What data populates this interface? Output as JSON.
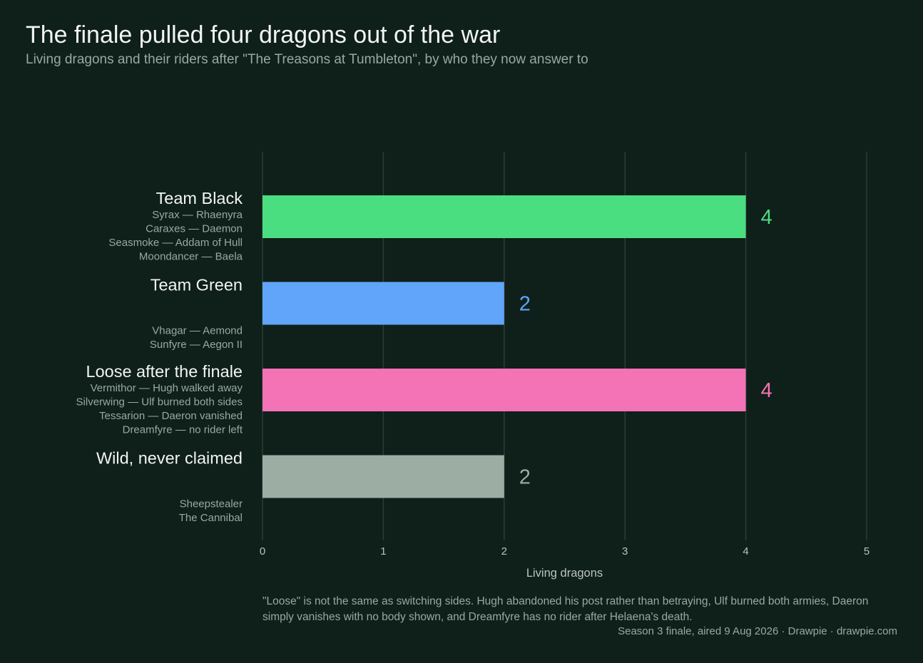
{
  "title": "The finale pulled four dragons out of the war",
  "subtitle": "Living dragons and their riders after \"The Treasons at Tumbleton\", by who they now answer to",
  "note": "\"Loose\" is not the same as switching sides. Hugh abandoned his post rather than betraying, Ulf burned both armies, Daeron simply vanishes with no body shown, and Dreamfyre has no rider after Helaena's death.",
  "source": "Season 3 finale, aired 9 Aug 2026  ·  Drawpie · drawpie.com",
  "chart_data": {
    "type": "bar",
    "orientation": "horizontal",
    "categories": [
      "Team Black",
      "Team Green",
      "Loose after the finale",
      "Wild, never claimed"
    ],
    "values": [
      4,
      2,
      4,
      2
    ],
    "details": [
      [
        "Syrax — Rhaenyra",
        "Caraxes — Daemon",
        "Seasmoke — Addam of Hull",
        "Moondancer — Baela"
      ],
      [
        "Vhagar — Aemond",
        "Sunfyre — Aegon II"
      ],
      [
        "Vermithor — Hugh walked away",
        "Silverwing — Ulf burned both sides",
        "Tessarion — Daeron vanished",
        "Dreamfyre — no rider left"
      ],
      [
        "Sheepstealer",
        "The Cannibal"
      ]
    ],
    "colors": [
      "#4ade80",
      "#60a5fa",
      "#f472b6",
      "#9caea4"
    ],
    "xlabel": "Living dragons",
    "xlim": [
      0,
      5
    ],
    "xticks": [
      0,
      1,
      2,
      3,
      4,
      5
    ],
    "grid": true
  }
}
